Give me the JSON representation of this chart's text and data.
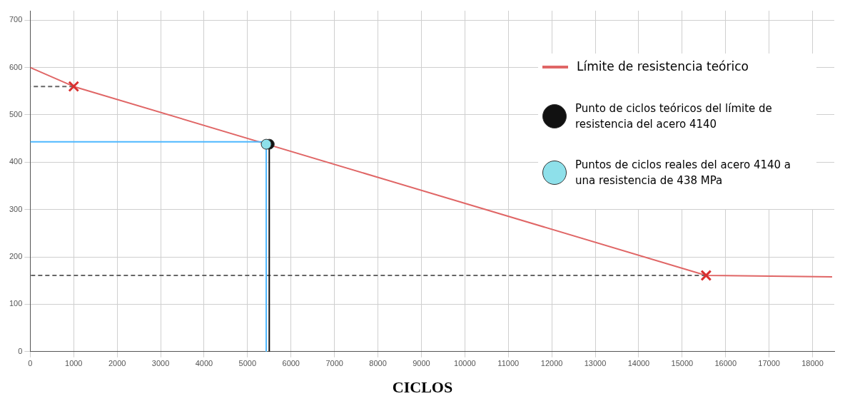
{
  "chart_data": {
    "type": "line",
    "xlabel": "CICLOS",
    "xlim": [
      0,
      18500
    ],
    "ylim": [
      0,
      720
    ],
    "xticks": [
      0,
      1000,
      2000,
      3000,
      4000,
      5000,
      6000,
      7000,
      8000,
      9000,
      10000,
      11000,
      12000,
      13000,
      14000,
      15000,
      16000,
      17000,
      18000
    ],
    "yticks": [
      0,
      100,
      200,
      300,
      400,
      500,
      600,
      700
    ],
    "grid": true,
    "legend": "top right",
    "series": [
      {
        "name": "Límite de resistencia teórico",
        "color": "#e06666",
        "marker": "none",
        "line_style": "solid",
        "x": [
          0,
          1000,
          15550,
          18450
        ],
        "values": [
          600,
          560,
          161,
          158
        ]
      },
      {
        "color": "#666666",
        "marker": "none",
        "line_style": "dashed",
        "x": [
          1000,
          0
        ],
        "values": [
          560,
          560
        ]
      },
      {
        "color": "#666666",
        "marker": "none",
        "line_style": "dashed",
        "x": [
          15550,
          0
        ],
        "values": [
          161,
          161
        ]
      },
      {
        "color": "#4db8ff",
        "marker": "none",
        "line_style": "solid",
        "x": [
          0,
          5430,
          5430
        ],
        "values": [
          443,
          443,
          0
        ]
      },
      {
        "color": "#111111",
        "marker": "none",
        "line_style": "solid",
        "x": [
          5500,
          5500
        ],
        "values": [
          438,
          0
        ]
      },
      {
        "type": "scatter",
        "color": "#d93030",
        "marker": "cross",
        "x": [
          1000,
          15550
        ],
        "values": [
          560,
          161
        ]
      },
      {
        "name": "Punto de ciclos teóricos del límite de resistencia del acero 4140",
        "type": "scatter",
        "color": "#111111",
        "marker": "circle",
        "x": [
          5500
        ],
        "values": [
          438
        ]
      },
      {
        "name": "Puntos de ciclos reales del acero 4140 a una resistencia de 438 MPa",
        "type": "scatter",
        "color": "#8ee0ea",
        "marker": "circle",
        "x": [
          5430
        ],
        "values": [
          438
        ]
      }
    ]
  }
}
